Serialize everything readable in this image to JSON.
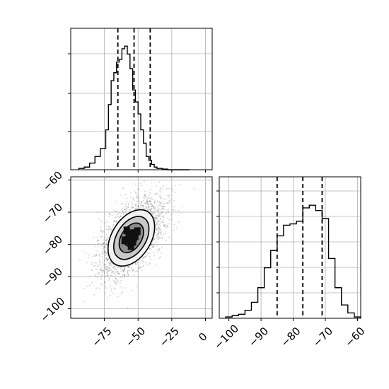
{
  "chart_data": [
    {
      "type": "histogram",
      "panel": "top-left",
      "xlim": [
        -100,
        5
      ],
      "x_ticks": [
        -75,
        -50,
        -25,
        0
      ],
      "grid": true,
      "bins": [
        -94,
        -90,
        -86,
        -82,
        -78,
        -74,
        -72,
        -70,
        -68,
        -66,
        -64,
        -62,
        -60,
        -58,
        -56,
        -54,
        -52,
        -50,
        -48,
        -46,
        -44,
        -42,
        -40,
        -38,
        -36,
        -32,
        -28,
        -24,
        -20,
        -16,
        -12
      ],
      "counts": [
        0.01,
        0.02,
        0.05,
        0.1,
        0.16,
        0.3,
        0.49,
        0.67,
        0.73,
        0.81,
        0.83,
        0.91,
        0.93,
        0.87,
        0.76,
        0.6,
        0.51,
        0.42,
        0.3,
        0.2,
        0.1,
        0.07,
        0.04,
        0.02,
        0.01,
        0.005,
        0,
        0,
        0,
        0
      ],
      "quantiles": [
        -65,
        -53,
        -41
      ]
    },
    {
      "type": "heatmap",
      "panel": "bottom-left",
      "xlim": [
        -100,
        5
      ],
      "ylim": [
        -103,
        -59
      ],
      "x_ticks": [
        -75,
        -50,
        -25,
        0
      ],
      "y_ticks": [
        -60,
        -70,
        -80,
        -90,
        -100
      ],
      "grid": true,
      "center": [
        -55,
        -78
      ],
      "contour_levels": 4
    },
    {
      "type": "histogram",
      "panel": "bottom-right",
      "xlim": [
        -103,
        -59
      ],
      "x_ticks": [
        -100,
        -90,
        -80,
        -70,
        -60
      ],
      "grid": true,
      "bins": [
        -101,
        -99,
        -97,
        -95,
        -93,
        -91,
        -89,
        -87,
        -85,
        -83,
        -81,
        -79,
        -77,
        -75,
        -73,
        -71,
        -69,
        -67,
        -65,
        -63,
        -61,
        -59
      ],
      "counts": [
        0.01,
        0.02,
        0.03,
        0.06,
        0.12,
        0.23,
        0.38,
        0.51,
        0.62,
        0.7,
        0.71,
        0.73,
        0.83,
        0.85,
        0.81,
        0.75,
        0.45,
        0.23,
        0.1,
        0.04,
        0.01
      ],
      "quantiles": [
        -85,
        -77,
        -71
      ]
    }
  ]
}
